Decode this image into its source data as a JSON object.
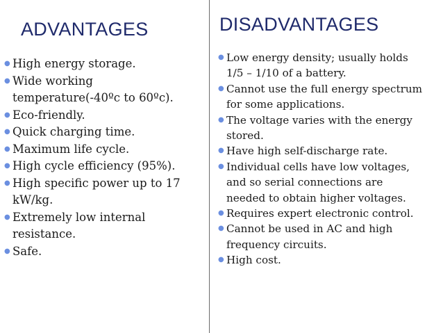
{
  "advantages": {
    "heading": "ADVANTAGES",
    "items": [
      "High energy storage.",
      "Wide working\ntemperature(-40ºc to 60ºc).",
      "Eco-friendly.",
      "Quick charging time.",
      "Maximum life cycle.",
      "High cycle efficiency (95%).",
      "High specific power up to 17\nkW/kg.",
      "Extremely low internal\nresistance.",
      "Safe."
    ]
  },
  "disadvantages": {
    "heading": "DISADVANTAGES",
    "items": [
      " Low energy density; usually holds\n1/5 – 1/10 of a battery.",
      "Cannot use the full energy spectrum\nfor some applications.",
      " The voltage varies with the energy\nstored.",
      "Have high self-discharge rate.",
      "Individual cells have low voltages,\nand so serial connections are\nneeded to obtain higher voltages.",
      "Requires expert electronic control.",
      "Cannot be used in AC and high\nfrequency circuits.",
      "High cost."
    ]
  },
  "colors": {
    "heading": "#1f2a6b",
    "bullet": "#6b8fe0",
    "divider": "#6a6a6a"
  }
}
